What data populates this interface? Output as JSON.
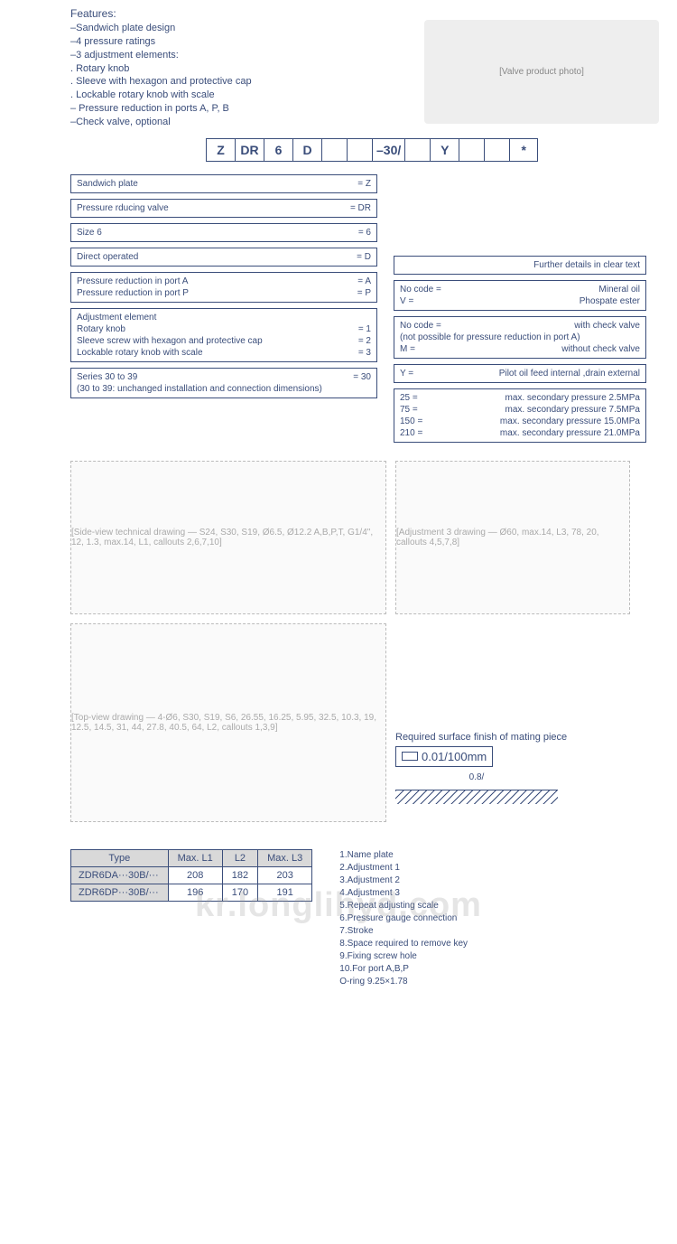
{
  "features": {
    "title": "Features:",
    "items": [
      "–Sandwich plate design",
      "–4 pressure ratings",
      "–3 adjustment elements:",
      ". Rotary knob",
      ". Sleeve with hexagon and protective cap",
      ". Lockable rotary knob with scale",
      "– Pressure reduction in ports A, P, B",
      "–Check valve, optional"
    ]
  },
  "valve_image_alt": "[Valve product photo]",
  "code_cells": [
    "Z",
    "DR",
    "6",
    "D",
    "",
    "",
    "–30/",
    "",
    "Y",
    "",
    "",
    "*"
  ],
  "left_boxes": [
    {
      "rows": [
        {
          "l": "Sandwich plate",
          "r": "= Z"
        }
      ]
    },
    {
      "rows": [
        {
          "l": "Pressure rducing valve",
          "r": "= DR"
        }
      ]
    },
    {
      "rows": [
        {
          "l": "Size 6",
          "r": "= 6"
        }
      ]
    },
    {
      "rows": [
        {
          "l": "Direct operated",
          "r": "= D"
        }
      ]
    },
    {
      "rows": [
        {
          "l": "Pressure reduction in port A",
          "r": "= A"
        },
        {
          "l": "Pressure reduction in port P",
          "r": "= P"
        }
      ]
    },
    {
      "rows": [
        {
          "l": "Adjustment element",
          "r": ""
        },
        {
          "l": "Rotary knob",
          "r": "= 1"
        },
        {
          "l": "Sleeve screw with hexagon and protective cap",
          "r": "= 2"
        },
        {
          "l": "Lockable rotary knob with scale",
          "r": "= 3"
        }
      ]
    },
    {
      "rows": [
        {
          "l": "Series 30 to 39",
          "r": "= 30"
        },
        {
          "l": "(30 to 39: unchanged installation and connection dimensions)",
          "r": ""
        }
      ]
    }
  ],
  "right_boxes": [
    {
      "rows": [
        {
          "l": "",
          "r": "Further details in clear text"
        }
      ]
    },
    {
      "rows": [
        {
          "l": "No code =",
          "r": "Mineral oil"
        },
        {
          "l": "V =",
          "r": "Phospate ester"
        }
      ]
    },
    {
      "rows": [
        {
          "l": "No code =",
          "r": "with check valve"
        },
        {
          "l": "(not possible for pressure reduction in port A)",
          "r": ""
        },
        {
          "l": "M =",
          "r": "without check valve"
        }
      ]
    },
    {
      "rows": [
        {
          "l": "Y =",
          "r": "Pilot oil feed internal ,drain external"
        }
      ]
    },
    {
      "rows": [
        {
          "l": "25 =",
          "r": "max. secondary pressure 2.5MPa"
        },
        {
          "l": "75 =",
          "r": "max. secondary pressure 7.5MPa"
        },
        {
          "l": "150 =",
          "r": "max. secondary pressure 15.0MPa"
        },
        {
          "l": "210 =",
          "r": "max. secondary pressure 21.0MPa"
        }
      ]
    }
  ],
  "drawings": {
    "d1": "[Side-view technical drawing — S24, S30, S19, Ø6.5, Ø12.2 A,B,P,T, G1/4\", 12, 1.3, max.14, L1, callouts 2,6,7,10]",
    "d2": "[Adjustment 3 drawing — Ø60, max.14, L3, 78, 20, callouts 4,5,7,8]",
    "d3": "[Top-view drawing — 4-Ø6, S30, S19, S6, 26.55, 16.25, 5.95, 32.5, 10.3, 19, 12.5, 14.5, 31, 44, 27.8, 40.5, 64, L2, callouts 1,3,9]"
  },
  "finish": {
    "title": "Required surface finish of mating piece",
    "spec": "0.01/100mm",
    "roughness": "0.8/"
  },
  "dim_table": {
    "headers": [
      "Type",
      "Max. L1",
      "L2",
      "Max. L3"
    ],
    "rows": [
      [
        "ZDR6DA···30B/···",
        "208",
        "182",
        "203"
      ],
      [
        "ZDR6DP···30B/···",
        "196",
        "170",
        "191"
      ]
    ]
  },
  "legend": [
    "1.Name plate",
    "2.Adjustment 1",
    "3.Adjustment 2",
    "4.Adjustment 3",
    "5.Repeat adjusting scale",
    "6.Pressure gauge connection",
    "7.Stroke",
    "8.Space required to remove key",
    "9.Fixing screw hole",
    "10.For port A,B,P",
    "   O-ring 9.25×1.78"
  ],
  "watermark": "kr.longlihyd.com"
}
